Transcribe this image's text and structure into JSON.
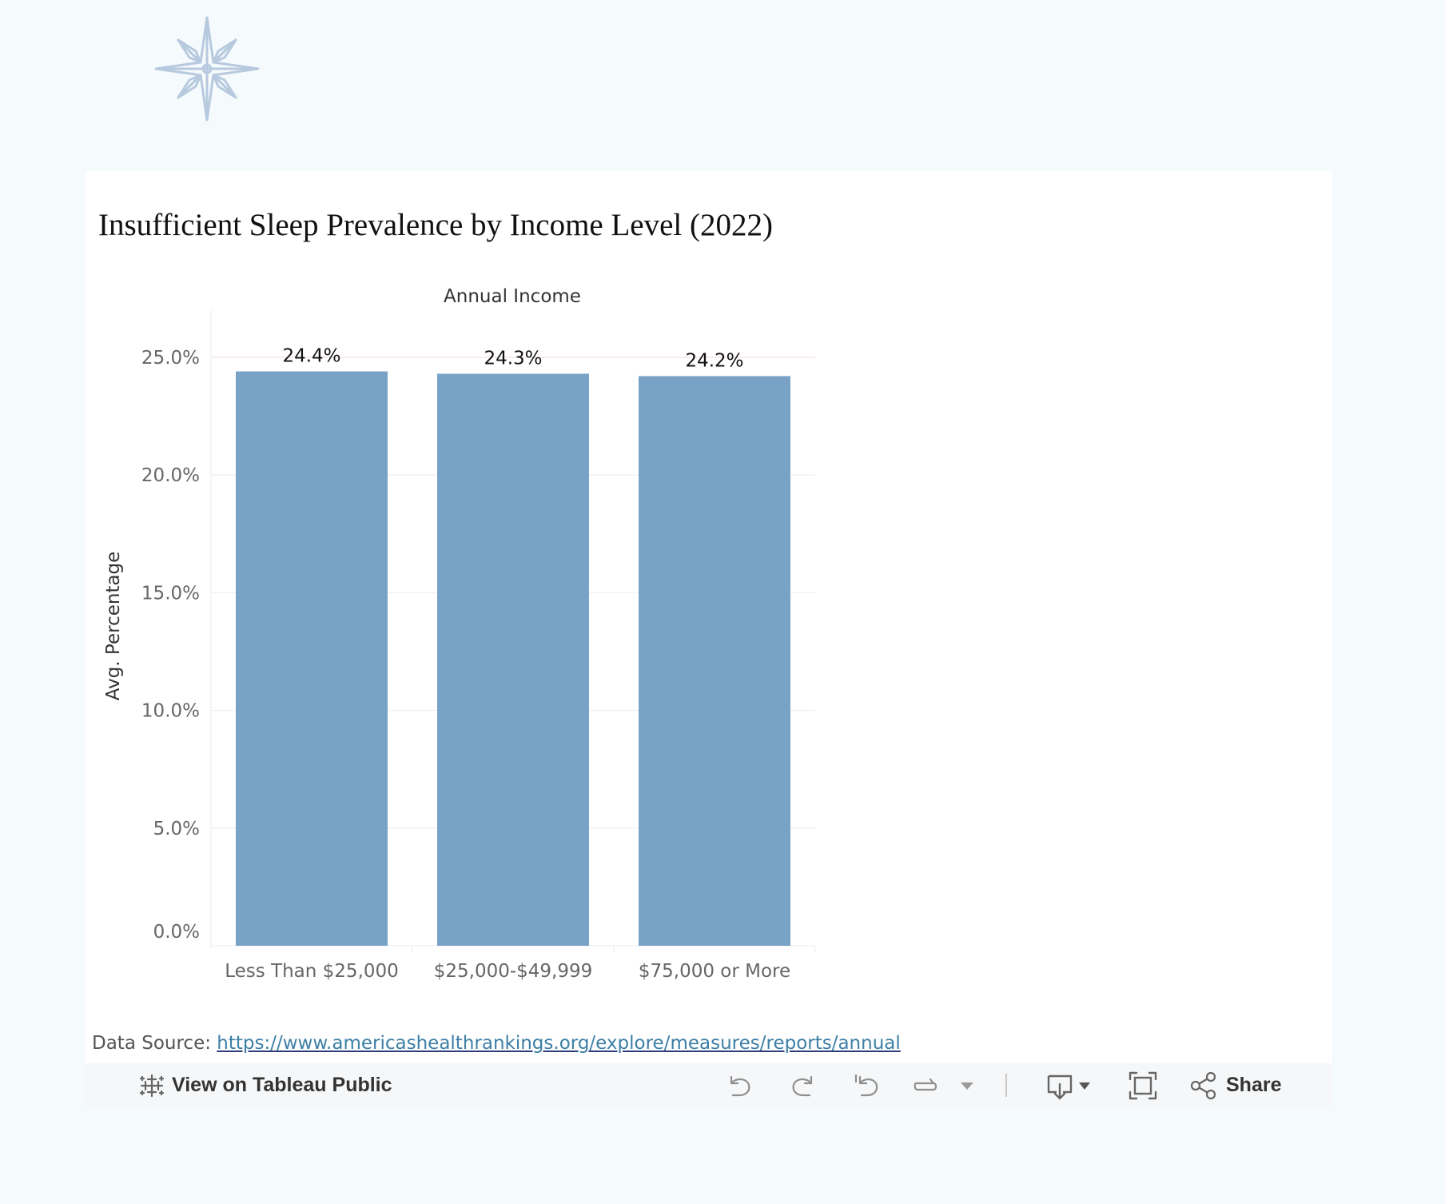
{
  "chart_data": {
    "type": "bar",
    "title": "Insufficient Sleep Prevalence by Income Level (2022)",
    "header_label": "Annual Income",
    "ylabel": "Avg. Percentage",
    "xlabel": "",
    "categories": [
      "Less Than $25,000",
      "$25,000-$49,999",
      "$75,000 or More"
    ],
    "values": [
      24.4,
      24.3,
      24.2
    ],
    "data_labels": [
      "24.4%",
      "24.3%",
      "24.2%"
    ],
    "ylim": [
      0,
      27
    ],
    "yticks": [
      0,
      5,
      10,
      15,
      20,
      25
    ],
    "ytick_labels": [
      "0.0%",
      "5.0%",
      "10.0%",
      "15.0%",
      "20.0%",
      "25.0%"
    ],
    "bar_color": "#78a2c6",
    "grid": true,
    "legend": "none"
  },
  "source": {
    "label": "Data Source:",
    "url": "https://www.americashealthrankings.org/explore/measures/reports/annual"
  },
  "toolbar": {
    "view_label": "View on Tableau Public",
    "share_label": "Share"
  },
  "icons": {
    "logo": "compass-star-icon",
    "tableau": "tableau-icon",
    "undo": "undo-icon",
    "redo": "redo-icon",
    "revert": "revert-icon",
    "refresh": "refresh-icon",
    "more": "chevron-down-icon",
    "download": "download-icon",
    "fullscreen": "fullscreen-icon",
    "share": "share-icon"
  },
  "colors": {
    "page_background": "#f5fafd",
    "card_background": "#ffffff",
    "logo": "#b7c9de",
    "link": "#3d7fa6"
  }
}
